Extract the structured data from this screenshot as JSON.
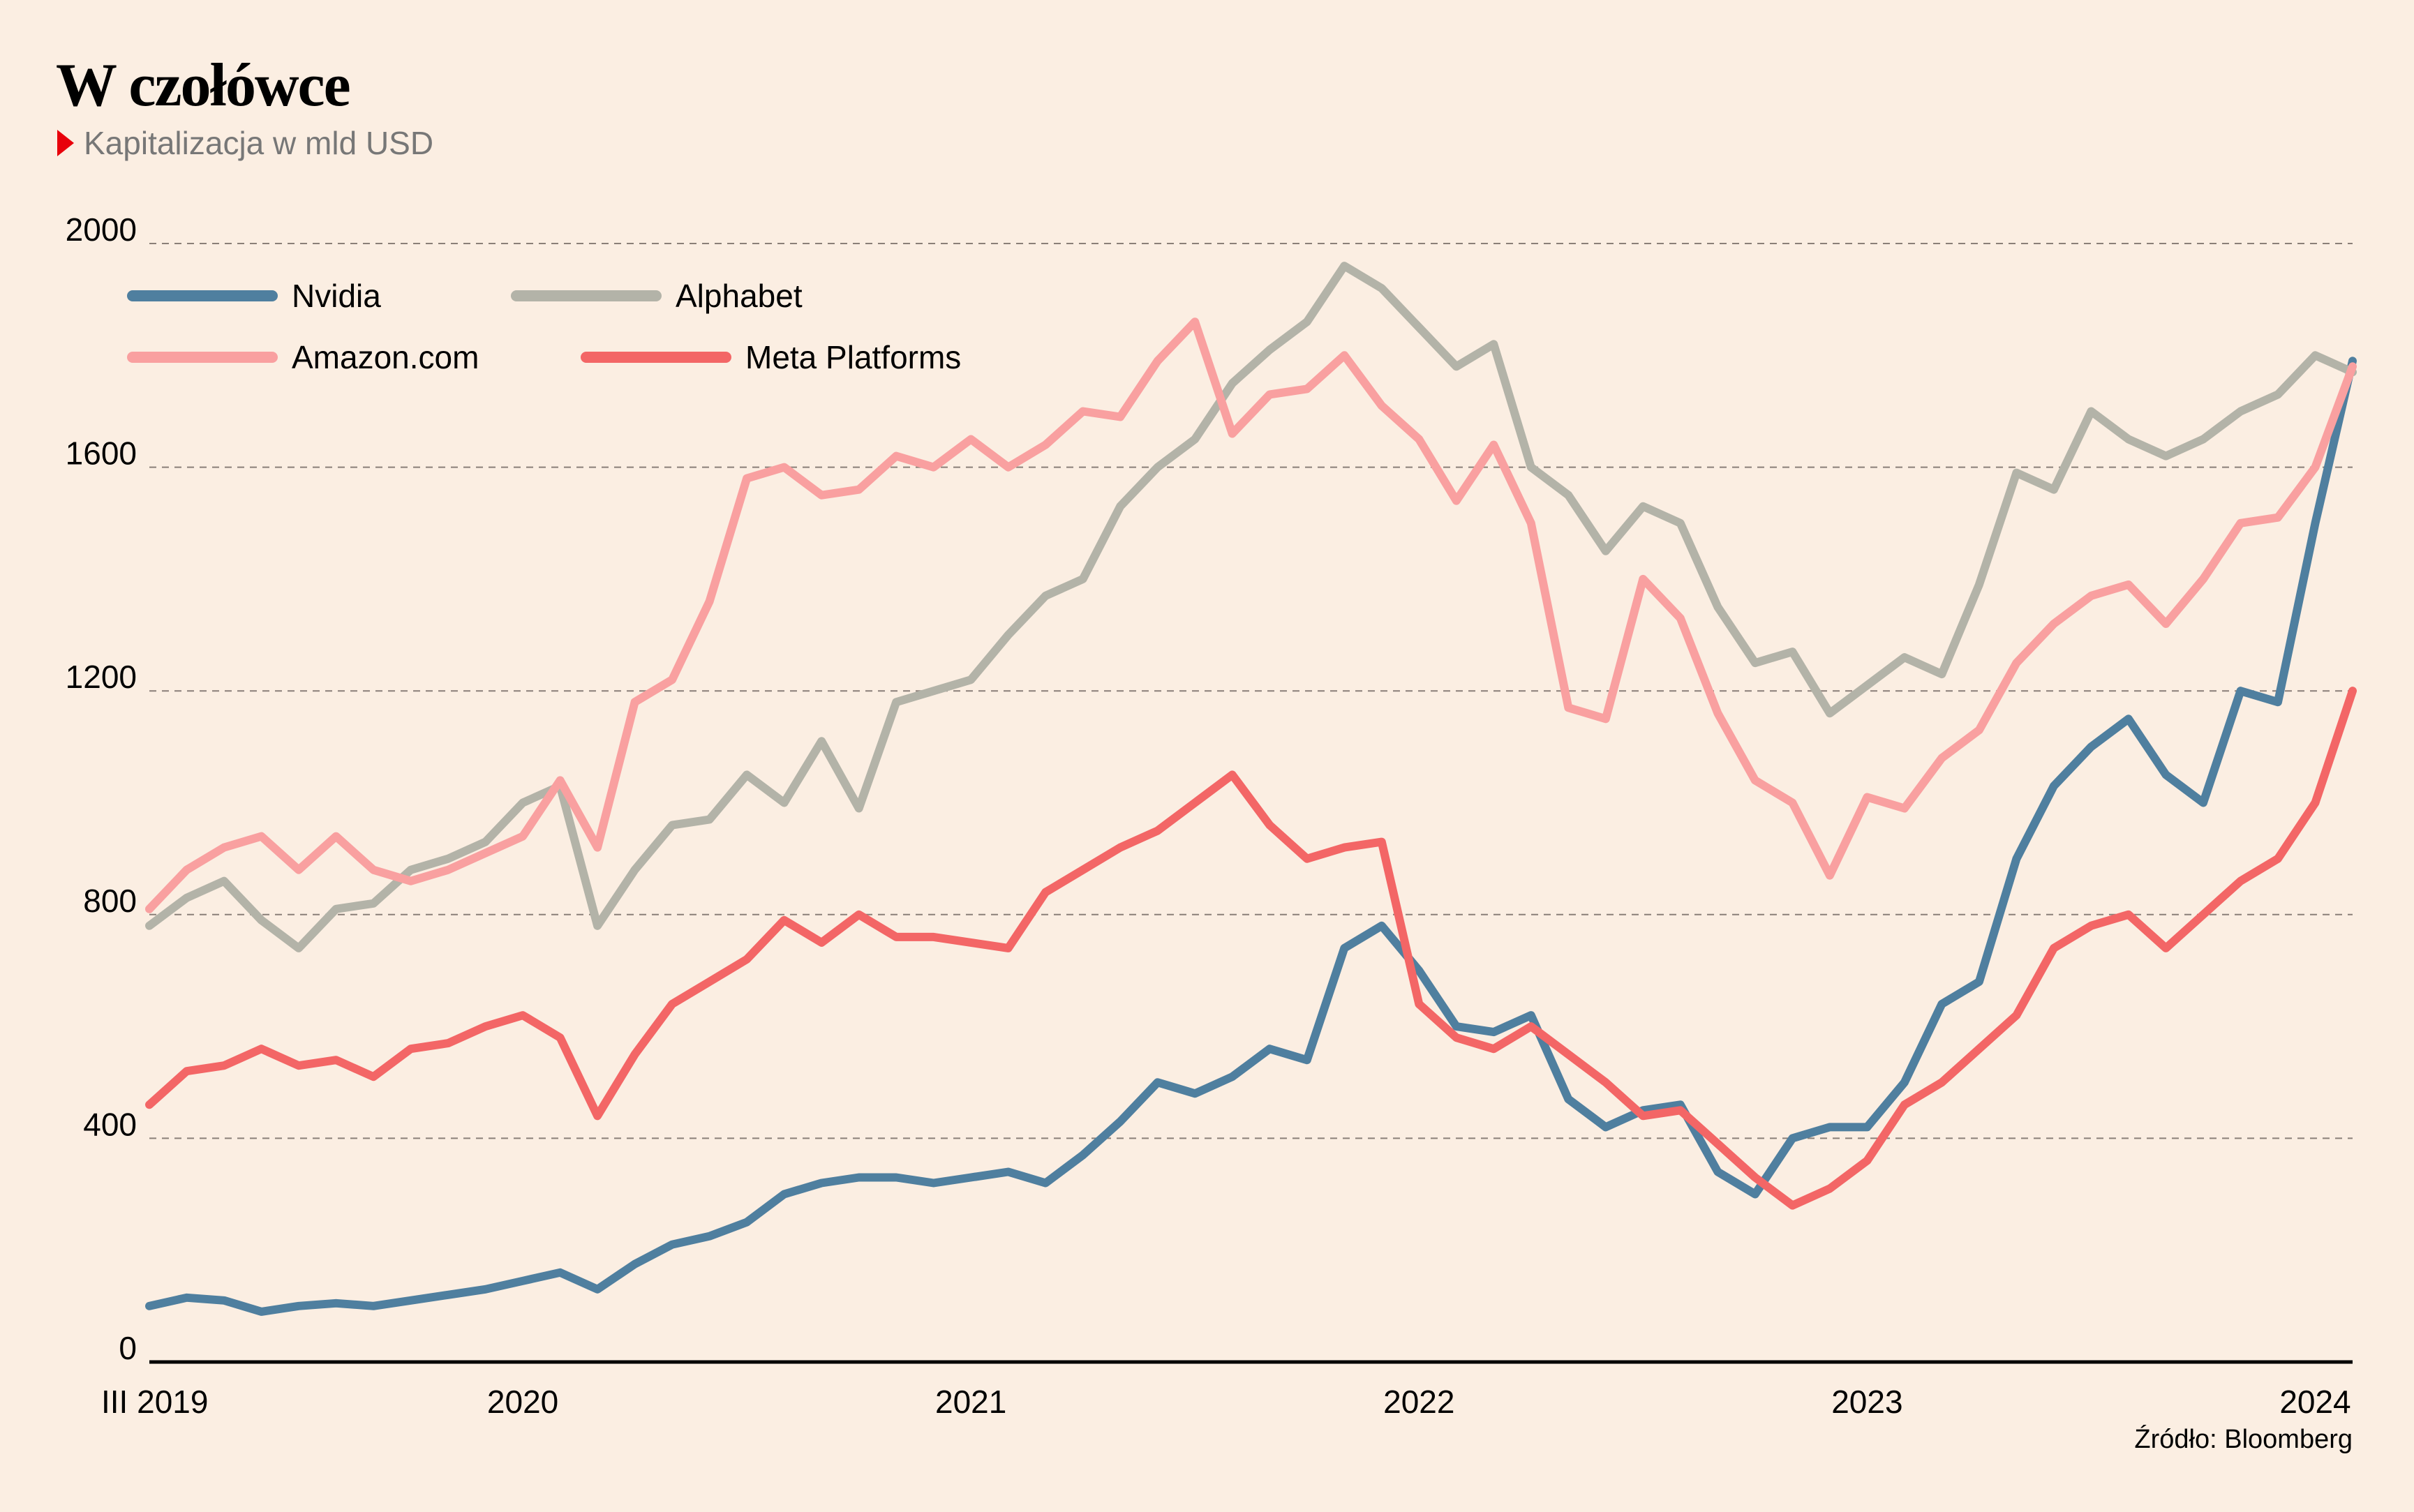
{
  "chart_data": {
    "type": "line",
    "title": "W czołówce",
    "subtitle": "Kapitalizacja w mld USD",
    "source": "Źródło: Bloomberg",
    "xlabel": "",
    "ylabel": "",
    "ylim": [
      0,
      2000
    ],
    "yticks": [
      0,
      400,
      800,
      1200,
      1600,
      2000
    ],
    "ytick_labels": [
      "0",
      "400",
      "800",
      "1200",
      "1600",
      "2000"
    ],
    "grid": true,
    "legend_position": "top-left",
    "x_start": "2019-03",
    "x_end": "2024-02",
    "xticks": [
      {
        "label": "III 2019",
        "month_index": 0
      },
      {
        "label": "2020",
        "month_index": 10
      },
      {
        "label": "2021",
        "month_index": 22
      },
      {
        "label": "2022",
        "month_index": 34
      },
      {
        "label": "2023",
        "month_index": 46
      },
      {
        "label": "2024",
        "month_index": 58
      }
    ],
    "x": [
      "2019-03",
      "2019-04",
      "2019-05",
      "2019-06",
      "2019-07",
      "2019-08",
      "2019-09",
      "2019-10",
      "2019-11",
      "2019-12",
      "2020-01",
      "2020-02",
      "2020-03",
      "2020-04",
      "2020-05",
      "2020-06",
      "2020-07",
      "2020-08",
      "2020-09",
      "2020-10",
      "2020-11",
      "2020-12",
      "2021-01",
      "2021-02",
      "2021-03",
      "2021-04",
      "2021-05",
      "2021-06",
      "2021-07",
      "2021-08",
      "2021-09",
      "2021-10",
      "2021-11",
      "2021-12",
      "2022-01",
      "2022-02",
      "2022-03",
      "2022-04",
      "2022-05",
      "2022-06",
      "2022-07",
      "2022-08",
      "2022-09",
      "2022-10",
      "2022-11",
      "2022-12",
      "2023-01",
      "2023-02",
      "2023-03",
      "2023-04",
      "2023-05",
      "2023-06",
      "2023-07",
      "2023-08",
      "2023-09",
      "2023-10",
      "2023-11",
      "2023-12",
      "2024-01",
      "2024-02"
    ],
    "series": [
      {
        "name": "Nvidia",
        "color": "#4f7f9f",
        "values": [
          100,
          115,
          110,
          90,
          100,
          105,
          100,
          110,
          120,
          130,
          145,
          160,
          130,
          175,
          210,
          225,
          250,
          300,
          320,
          330,
          330,
          320,
          330,
          340,
          320,
          370,
          430,
          500,
          480,
          510,
          560,
          540,
          740,
          780,
          700,
          600,
          590,
          620,
          470,
          420,
          450,
          460,
          340,
          300,
          400,
          420,
          420,
          500,
          640,
          680,
          900,
          1030,
          1100,
          1150,
          1050,
          1000,
          1200,
          1180,
          1500,
          1790
        ]
      },
      {
        "name": "Alphabet",
        "color": "#b3b3a8",
        "values": [
          780,
          830,
          860,
          790,
          740,
          810,
          820,
          880,
          900,
          930,
          1000,
          1030,
          780,
          880,
          960,
          970,
          1050,
          1000,
          1110,
          990,
          1180,
          1200,
          1220,
          1300,
          1370,
          1400,
          1530,
          1600,
          1650,
          1750,
          1810,
          1860,
          1960,
          1920,
          1850,
          1780,
          1820,
          1600,
          1550,
          1450,
          1530,
          1500,
          1350,
          1250,
          1270,
          1160,
          1210,
          1260,
          1230,
          1390,
          1590,
          1560,
          1700,
          1650,
          1620,
          1650,
          1700,
          1730,
          1800,
          1770
        ]
      },
      {
        "name": "Amazon.com",
        "color": "#f9a0a0",
        "values": [
          810,
          880,
          920,
          940,
          880,
          940,
          880,
          860,
          880,
          910,
          940,
          1040,
          920,
          1180,
          1220,
          1360,
          1580,
          1600,
          1550,
          1560,
          1620,
          1600,
          1650,
          1600,
          1640,
          1700,
          1690,
          1790,
          1860,
          1660,
          1730,
          1740,
          1800,
          1710,
          1650,
          1540,
          1640,
          1500,
          1170,
          1150,
          1400,
          1330,
          1160,
          1040,
          1000,
          870,
          1010,
          990,
          1080,
          1130,
          1250,
          1320,
          1370,
          1390,
          1320,
          1400,
          1500,
          1510,
          1600,
          1780
        ]
      },
      {
        "name": "Meta Platforms",
        "color": "#f36666",
        "values": [
          460,
          520,
          530,
          560,
          530,
          540,
          510,
          560,
          570,
          600,
          620,
          580,
          440,
          550,
          640,
          680,
          720,
          790,
          750,
          800,
          760,
          760,
          750,
          740,
          840,
          880,
          920,
          950,
          1000,
          1050,
          960,
          900,
          920,
          930,
          640,
          580,
          560,
          600,
          550,
          500,
          440,
          450,
          390,
          330,
          280,
          310,
          360,
          460,
          500,
          560,
          620,
          740,
          780,
          800,
          740,
          800,
          860,
          900,
          1000,
          1200
        ]
      }
    ]
  }
}
